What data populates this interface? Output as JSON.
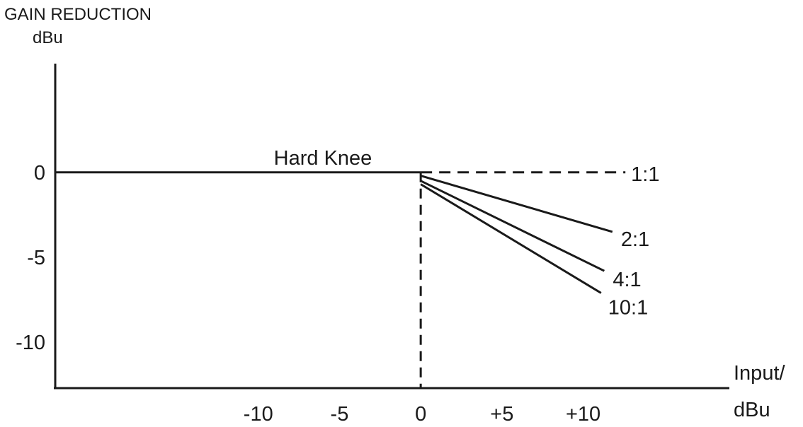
{
  "chart_data": {
    "type": "line",
    "title": "",
    "ylabel_lines": [
      "GAIN REDUCTION",
      "dBu"
    ],
    "xlabel_lines": [
      "Input/",
      "dBu"
    ],
    "annotation": "Hard Knee",
    "x_ticks": [
      {
        "value": -10,
        "label": "-10"
      },
      {
        "value": -5,
        "label": "-5"
      },
      {
        "value": 0,
        "label": "0"
      },
      {
        "value": 5,
        "label": "+5"
      },
      {
        "value": 10,
        "label": "+10"
      }
    ],
    "y_ticks": [
      {
        "value": 0,
        "label": "0"
      },
      {
        "value": -5,
        "label": "-5"
      },
      {
        "value": -10,
        "label": "-10"
      }
    ],
    "xlim": [
      -22.5,
      19
    ],
    "ylim": [
      -12.7,
      6.4
    ],
    "threshold": 0,
    "below_threshold": {
      "x": [
        -22.5,
        0
      ],
      "y": [
        0,
        0
      ]
    },
    "series": [
      {
        "name": "1:1",
        "style": "dashed",
        "x": [
          0,
          12.6
        ],
        "y": [
          0,
          0
        ]
      },
      {
        "name": "2:1",
        "style": "solid",
        "x": [
          0,
          11.8
        ],
        "y": [
          -0.2,
          -3.5
        ]
      },
      {
        "name": "4:1",
        "style": "solid",
        "x": [
          0,
          11.3
        ],
        "y": [
          -0.5,
          -5.8
        ]
      },
      {
        "name": "10:1",
        "style": "solid",
        "x": [
          0,
          11.1
        ],
        "y": [
          -0.7,
          -7.1
        ]
      }
    ],
    "grid": false,
    "legend": "none"
  }
}
